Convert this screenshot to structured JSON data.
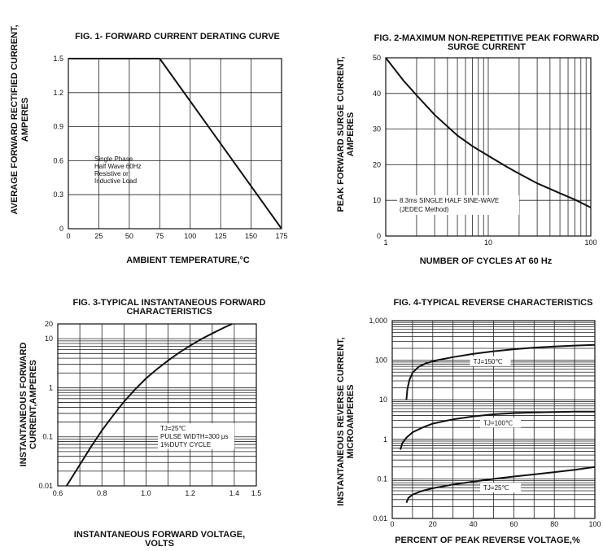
{
  "colors": {
    "ink": "#111111",
    "grid": "#222222",
    "background": "#ffffff"
  },
  "chart_data": [
    {
      "id": "fig1",
      "type": "line",
      "title": "FIG. 1- FORWARD CURRENT DERATING CURVE",
      "xlabel": "AMBIENT TEMPERATURE,°C",
      "ylabel_line1": "AVERAGE FORWARD RECTIFIED CURRENT,",
      "ylabel_line2": "AMPERES",
      "xscale": "linear",
      "yscale": "linear",
      "xlim": [
        0,
        175
      ],
      "ylim": [
        0,
        1.5
      ],
      "xticks": [
        0,
        25,
        50,
        75,
        100,
        125,
        150,
        175
      ],
      "yticks": [
        0,
        0.3,
        0.6,
        0.9,
        1.2,
        1.5
      ],
      "xtick_labels": [
        "0",
        "25",
        "50",
        "75",
        "100",
        "125",
        "150",
        "175"
      ],
      "ytick_labels": [
        "0",
        "0.3",
        "0.6",
        "0.9",
        "1.2",
        "1.5"
      ],
      "grid": true,
      "annotation": [
        "Single Phase",
        "Half Wave 60Hz",
        "Resistive or",
        "Inductive Load"
      ],
      "series": [
        {
          "x": [
            0,
            75,
            175
          ],
          "y": [
            1.5,
            1.5,
            0
          ]
        }
      ]
    },
    {
      "id": "fig2",
      "type": "line",
      "title_line1": "FIG. 2-MAXIMUM NON-REPETITIVE PEAK FORWARD",
      "title_line2": "SURGE CURRENT",
      "xlabel": "NUMBER OF CYCLES AT 60 Hz",
      "ylabel_line1": "PEAK FORWARD SURGE CURRENT,",
      "ylabel_line2": "AMPERES",
      "xscale": "log",
      "yscale": "linear",
      "xlim": [
        1,
        100
      ],
      "ylim": [
        0,
        50
      ],
      "xticks": [
        1,
        10,
        100
      ],
      "yticks": [
        0,
        10,
        20,
        30,
        40,
        50
      ],
      "xtick_labels": [
        "1",
        "10",
        "100"
      ],
      "ytick_labels": [
        "0",
        "10",
        "20",
        "30",
        "40",
        "50"
      ],
      "grid": true,
      "annotation": [
        "8.3ms SINGLE HALF SINE-WAVE",
        "(JEDEC Method)"
      ],
      "series": [
        {
          "x": [
            1,
            1.5,
            2,
            3,
            5,
            7,
            10,
            15,
            20,
            30,
            50,
            70,
            100
          ],
          "y": [
            50,
            43.5,
            39.5,
            34,
            28.2,
            25.2,
            22.5,
            19.5,
            17.5,
            14.8,
            12,
            10.2,
            8
          ]
        }
      ]
    },
    {
      "id": "fig3",
      "type": "line",
      "title_line1": "FIG. 3-TYPICAL INSTANTANEOUS FORWARD",
      "title_line2": "CHARACTERISTICS",
      "xlabel_line1": "INSTANTANEOUS FORWARD VOLTAGE,",
      "xlabel_line2": "VOLTS",
      "ylabel_line1": "INSTANTANEOUS FORWARD",
      "ylabel_line2": "CURRENT,AMPERES",
      "xscale": "linear",
      "yscale": "log",
      "xlim": [
        0.6,
        1.5
      ],
      "ylim": [
        0.01,
        20
      ],
      "xticks": [
        0.6,
        0.8,
        1.0,
        1.2,
        1.4,
        1.5
      ],
      "yticks": [
        0.01,
        0.1,
        1,
        10,
        20
      ],
      "xtick_labels": [
        "0.6",
        "0.8",
        "1.0",
        "1.2",
        "1.4",
        "1.5"
      ],
      "ytick_labels": [
        "0.01",
        "0.1",
        "1",
        "10",
        "20"
      ],
      "grid": true,
      "annotation": [
        "TJ=25℃",
        "PULSE WIDTH=300 μs",
        "1%DUTY CYCLE"
      ],
      "series": [
        {
          "x": [
            0.64,
            0.7,
            0.75,
            0.8,
            0.85,
            0.9,
            0.95,
            1.0,
            1.05,
            1.1,
            1.15,
            1.2,
            1.25,
            1.3,
            1.35,
            1.39
          ],
          "y": [
            0.01,
            0.027,
            0.062,
            0.135,
            0.27,
            0.52,
            0.92,
            1.55,
            2.4,
            3.6,
            5.2,
            7.2,
            9.8,
            12.8,
            16.5,
            20
          ]
        }
      ]
    },
    {
      "id": "fig4",
      "type": "line",
      "title": "FIG. 4-TYPICAL REVERSE CHARACTERISTICS",
      "xlabel": "PERCENT OF PEAK REVERSE VOLTAGE,%",
      "ylabel_line1": "INSTANTANEOUS REVERSE CURRENT,",
      "ylabel_line2": "MICROAMPERES",
      "xscale": "linear",
      "yscale": "log",
      "xlim": [
        0,
        100
      ],
      "ylim": [
        0.01,
        1000
      ],
      "xticks": [
        0,
        20,
        40,
        60,
        80,
        100
      ],
      "yticks": [
        0.01,
        0.1,
        1,
        10,
        100,
        1000
      ],
      "xtick_labels": [
        "0",
        "20",
        "40",
        "60",
        "80",
        "100"
      ],
      "ytick_labels": [
        "0.01",
        "0.1",
        "1",
        "10",
        "100",
        "1,000"
      ],
      "grid": true,
      "series": [
        {
          "name": "TJ=150℃",
          "x": [
            7,
            7.5,
            8.5,
            10,
            13,
            17,
            22,
            30,
            40,
            50,
            60,
            70,
            80,
            90,
            100
          ],
          "y": [
            10,
            19,
            32,
            48,
            68,
            85,
            100,
            120,
            145,
            168,
            190,
            208,
            222,
            235,
            245
          ]
        },
        {
          "name": "TJ=100℃",
          "x": [
            4,
            5,
            7,
            10,
            15,
            20,
            30,
            40,
            50,
            60,
            70,
            80,
            90,
            100
          ],
          "y": [
            0.55,
            0.8,
            1.1,
            1.5,
            2.0,
            2.5,
            3.2,
            3.8,
            4.3,
            4.6,
            4.8,
            4.9,
            5.0,
            5.0
          ]
        },
        {
          "name": "TJ=25℃",
          "x": [
            7,
            8,
            10,
            15,
            20,
            30,
            40,
            50,
            60,
            70,
            80,
            90,
            100
          ],
          "y": [
            0.025,
            0.033,
            0.04,
            0.05,
            0.058,
            0.072,
            0.085,
            0.1,
            0.115,
            0.13,
            0.148,
            0.17,
            0.2
          ]
        }
      ]
    }
  ]
}
